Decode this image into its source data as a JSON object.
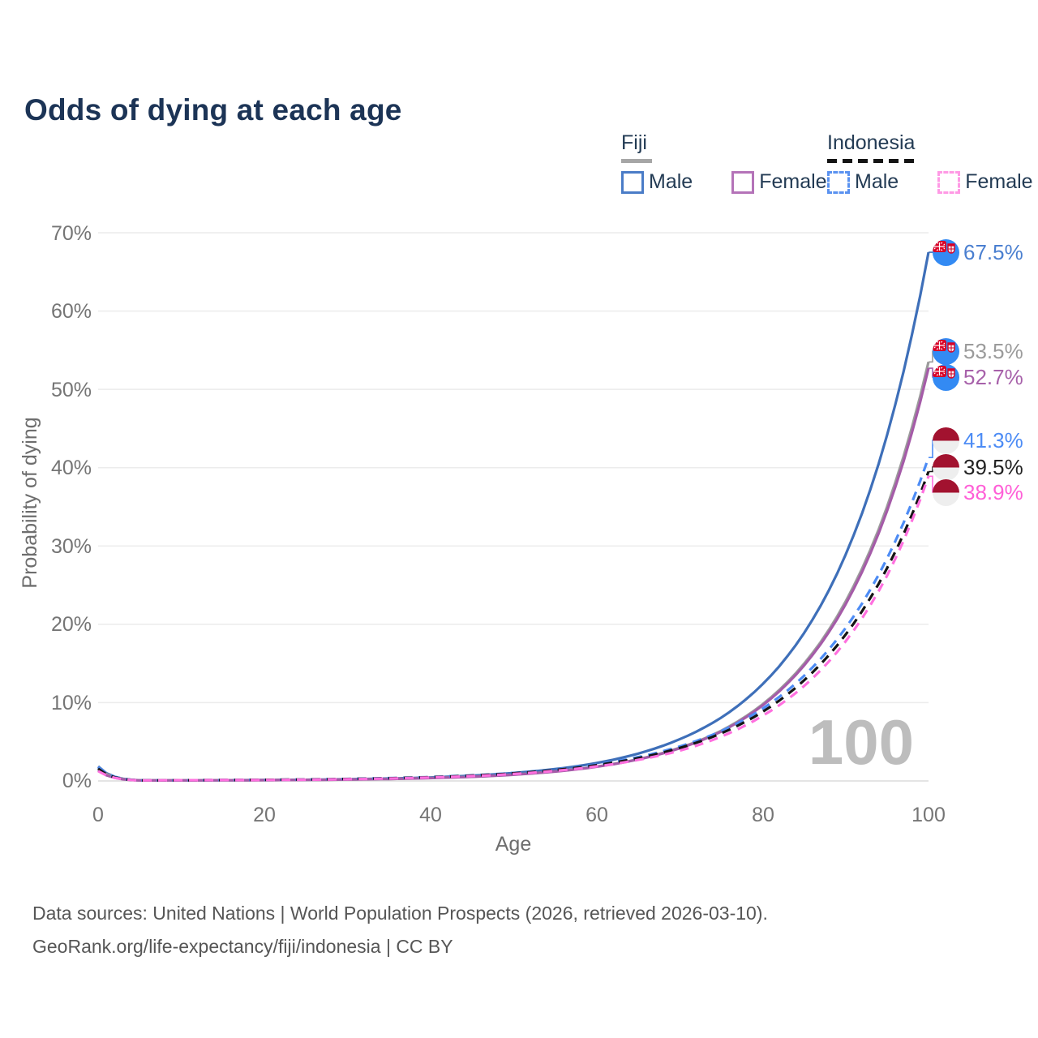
{
  "title": "Odds of dying at each age",
  "watermark": "100",
  "legend": {
    "groups": [
      {
        "label": "Fiji",
        "underline_style": "solid",
        "underline_color": "#a6a6a6",
        "items": [
          {
            "label": "Male",
            "swatch_color": "#4a7cc7",
            "dashed": false
          },
          {
            "label": "Female",
            "swatch_color": "#b473b8",
            "dashed": false
          }
        ]
      },
      {
        "label": "Indonesia",
        "underline_style": "dashed",
        "underline_color": "#141414",
        "items": [
          {
            "label": "Male",
            "swatch_color": "#5a92f0",
            "dashed": true
          },
          {
            "label": "Female",
            "swatch_color": "#ff9ae5",
            "dashed": true
          }
        ]
      }
    ]
  },
  "yaxis": {
    "title": "Probability of dying",
    "ticks": [
      "0%",
      "10%",
      "20%",
      "30%",
      "40%",
      "50%",
      "60%",
      "70%"
    ]
  },
  "xaxis": {
    "title": "Age",
    "ticks": [
      "0",
      "20",
      "40",
      "60",
      "80",
      "100"
    ]
  },
  "footer": {
    "line1": "Data sources: United Nations | World Population Prospects (2026, retrieved 2026-03-10).",
    "line2": "GeoRank.org/life-expectancy/fiji/indonesia | CC BY"
  },
  "chart_data": {
    "type": "line",
    "title": "Odds of dying at each age",
    "xlabel": "Age",
    "ylabel": "Probability of dying",
    "xlim": [
      0,
      100
    ],
    "ylim_percent": [
      0,
      70
    ],
    "grid": "horizontal",
    "x": [
      0,
      5,
      10,
      15,
      20,
      25,
      30,
      35,
      40,
      45,
      50,
      55,
      60,
      65,
      70,
      75,
      80,
      85,
      90,
      95,
      100
    ],
    "series": [
      {
        "name": "Fiji Male",
        "country": "Fiji",
        "sex": "Male",
        "flag": "fiji",
        "color": "#3e6fb9",
        "label_color": "#4a7fd0",
        "dash": false,
        "end_label": "67.5%",
        "values": [
          1.85,
          0.08,
          0.07,
          0.09,
          0.12,
          0.15,
          0.22,
          0.31,
          0.45,
          0.67,
          1.01,
          1.51,
          2.29,
          3.48,
          5.31,
          8.06,
          12.33,
          18.86,
          28.85,
          44.13,
          67.5
        ]
      },
      {
        "name": "Fiji Both sexes",
        "country": "Fiji",
        "sex": "Both",
        "flag": "fiji",
        "color": "#9b9b9b",
        "label_color": "#9b9b9b",
        "dash": false,
        "end_label": "53.5%",
        "values": [
          1.65,
          0.07,
          0.07,
          0.08,
          0.1,
          0.13,
          0.18,
          0.25,
          0.37,
          0.54,
          0.81,
          1.21,
          1.83,
          2.77,
          4.22,
          6.39,
          9.77,
          14.95,
          22.87,
          34.98,
          53.5
        ]
      },
      {
        "name": "Fiji Female",
        "country": "Fiji",
        "sex": "Female",
        "flag": "fiji",
        "color": "#a55ba8",
        "label_color": "#a761aa",
        "dash": false,
        "end_label": "52.7%",
        "values": [
          1.35,
          0.06,
          0.07,
          0.08,
          0.1,
          0.13,
          0.18,
          0.25,
          0.36,
          0.53,
          0.79,
          1.19,
          1.8,
          2.73,
          4.16,
          6.29,
          9.63,
          14.72,
          22.52,
          34.46,
          52.7
        ]
      },
      {
        "name": "Indonesia Male",
        "country": "Indonesia",
        "sex": "Male",
        "flag": "indonesia",
        "color": "#4d8cf5",
        "label_color": "#4d8cf5",
        "dash": true,
        "end_label": "41.3%",
        "values": [
          1.76,
          0.08,
          0.09,
          0.11,
          0.14,
          0.19,
          0.26,
          0.36,
          0.5,
          0.71,
          1.01,
          1.45,
          2.1,
          3.03,
          4.39,
          6.34,
          9.21,
          13.41,
          19.51,
          28.39,
          41.3
        ]
      },
      {
        "name": "Indonesia Both sexes",
        "country": "Indonesia",
        "sex": "Both",
        "flag": "indonesia",
        "color": "#141414",
        "label_color": "#222222",
        "dash": true,
        "end_label": "39.5%",
        "values": [
          1.56,
          0.07,
          0.09,
          0.11,
          0.14,
          0.18,
          0.25,
          0.34,
          0.48,
          0.68,
          0.97,
          1.39,
          2.01,
          2.9,
          4.2,
          6.06,
          8.81,
          12.83,
          18.66,
          27.15,
          39.5
        ]
      },
      {
        "name": "Indonesia Female",
        "country": "Indonesia",
        "sex": "Female",
        "flag": "indonesia",
        "color": "#ff70df",
        "label_color": "#ff5fd7",
        "dash": true,
        "end_label": "38.9%",
        "values": [
          1.26,
          0.07,
          0.09,
          0.11,
          0.12,
          0.16,
          0.22,
          0.31,
          0.44,
          0.62,
          0.89,
          1.28,
          1.85,
          2.68,
          3.85,
          5.65,
          8.3,
          12.1,
          17.8,
          26.2,
          38.9
        ]
      }
    ]
  }
}
